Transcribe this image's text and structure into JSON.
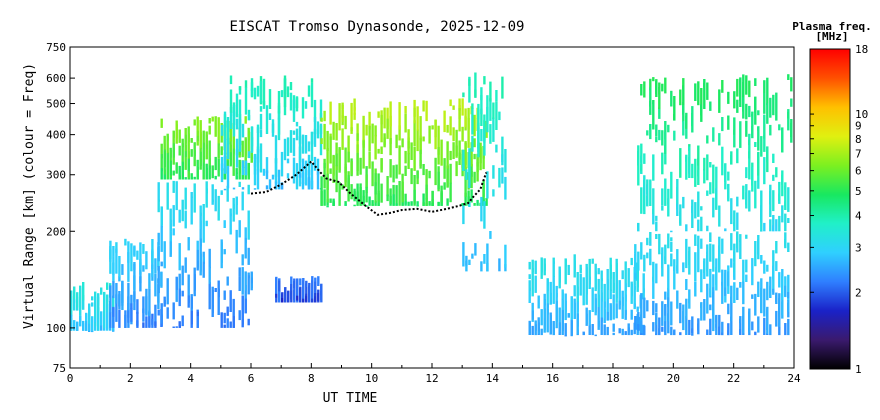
{
  "chart_data": {
    "type": "heatmap",
    "title": "EISCAT Tromso Dynasonde, 2025-12-09",
    "xlabel": "UT TIME",
    "ylabel": "Virtual Range [km] (colour = Freq)",
    "xlim": [
      0,
      24
    ],
    "ylim": [
      75,
      750
    ],
    "y_scale": "log",
    "x_ticks": [
      "0",
      "2",
      "4",
      "6",
      "8",
      "10",
      "12",
      "14",
      "16",
      "18",
      "20",
      "22",
      "24"
    ],
    "y_ticks": [
      "75",
      "100",
      "200",
      "300",
      "400",
      "500",
      "600",
      "750"
    ],
    "colorbar": {
      "title": "Plasma freq.",
      "unit": "[MHz]",
      "scale": "log",
      "range": [
        1,
        18
      ],
      "ticks": [
        "1",
        "2",
        "3",
        "4",
        "5",
        "6",
        "7",
        "8",
        "9",
        "10",
        "18"
      ],
      "colors": [
        "#000000",
        "#3a1a6e",
        "#1a22c8",
        "#2f7fff",
        "#2fd0ff",
        "#20f0c8",
        "#18e860",
        "#7cf020",
        "#e0f010",
        "#ffc000",
        "#ff5000",
        "#ff0000"
      ]
    },
    "f2_trace": [
      {
        "t": 6.0,
        "h": 262
      },
      {
        "t": 6.5,
        "h": 265
      },
      {
        "t": 7.0,
        "h": 280
      },
      {
        "t": 7.5,
        "h": 300
      },
      {
        "t": 8.0,
        "h": 330
      },
      {
        "t": 8.3,
        "h": 305
      },
      {
        "t": 8.5,
        "h": 292
      },
      {
        "t": 8.9,
        "h": 285
      },
      {
        "t": 9.3,
        "h": 262
      },
      {
        "t": 9.8,
        "h": 240
      },
      {
        "t": 10.2,
        "h": 225
      },
      {
        "t": 10.6,
        "h": 228
      },
      {
        "t": 11.0,
        "h": 233
      },
      {
        "t": 11.5,
        "h": 235
      },
      {
        "t": 12.0,
        "h": 230
      },
      {
        "t": 12.5,
        "h": 235
      },
      {
        "t": 12.9,
        "h": 240
      },
      {
        "t": 13.2,
        "h": 245
      },
      {
        "t": 13.4,
        "h": 258
      },
      {
        "t": 13.6,
        "h": 270
      },
      {
        "t": 13.8,
        "h": 305
      }
    ],
    "regions": [
      {
        "t0": 0.0,
        "t1": 1.4,
        "h0": 98,
        "h1": 140,
        "f0": 2.5,
        "f1": 3.5
      },
      {
        "t0": 1.3,
        "t1": 3.0,
        "h0": 100,
        "h1": 190,
        "f0": 2.0,
        "f1": 3.0
      },
      {
        "t0": 2.9,
        "t1": 6.0,
        "h0": 100,
        "h1": 290,
        "f0": 2.0,
        "f1": 3.2
      },
      {
        "t0": 3.0,
        "t1": 6.0,
        "h0": 290,
        "h1": 460,
        "f0": 4.5,
        "f1": 6.5
      },
      {
        "t0": 5.0,
        "t1": 8.3,
        "h0": 270,
        "h1": 620,
        "f0": 2.5,
        "f1": 4.0
      },
      {
        "t0": 6.8,
        "t1": 8.3,
        "h0": 120,
        "h1": 145,
        "f0": 1.6,
        "f1": 2.2
      },
      {
        "t0": 8.3,
        "t1": 13.8,
        "h0": 240,
        "h1": 520,
        "f0": 4.5,
        "f1": 7.5
      },
      {
        "t0": 13.0,
        "t1": 14.4,
        "h0": 150,
        "h1": 640,
        "f0": 2.5,
        "f1": 4.0
      },
      {
        "t0": 15.2,
        "t1": 19.0,
        "h0": 95,
        "h1": 170,
        "f0": 2.3,
        "f1": 3.3
      },
      {
        "t0": 18.7,
        "t1": 23.8,
        "h0": 95,
        "h1": 200,
        "f0": 2.2,
        "f1": 3.2
      },
      {
        "t0": 18.8,
        "t1": 23.9,
        "h0": 200,
        "h1": 620,
        "f0": 2.8,
        "f1": 5.0
      }
    ]
  }
}
